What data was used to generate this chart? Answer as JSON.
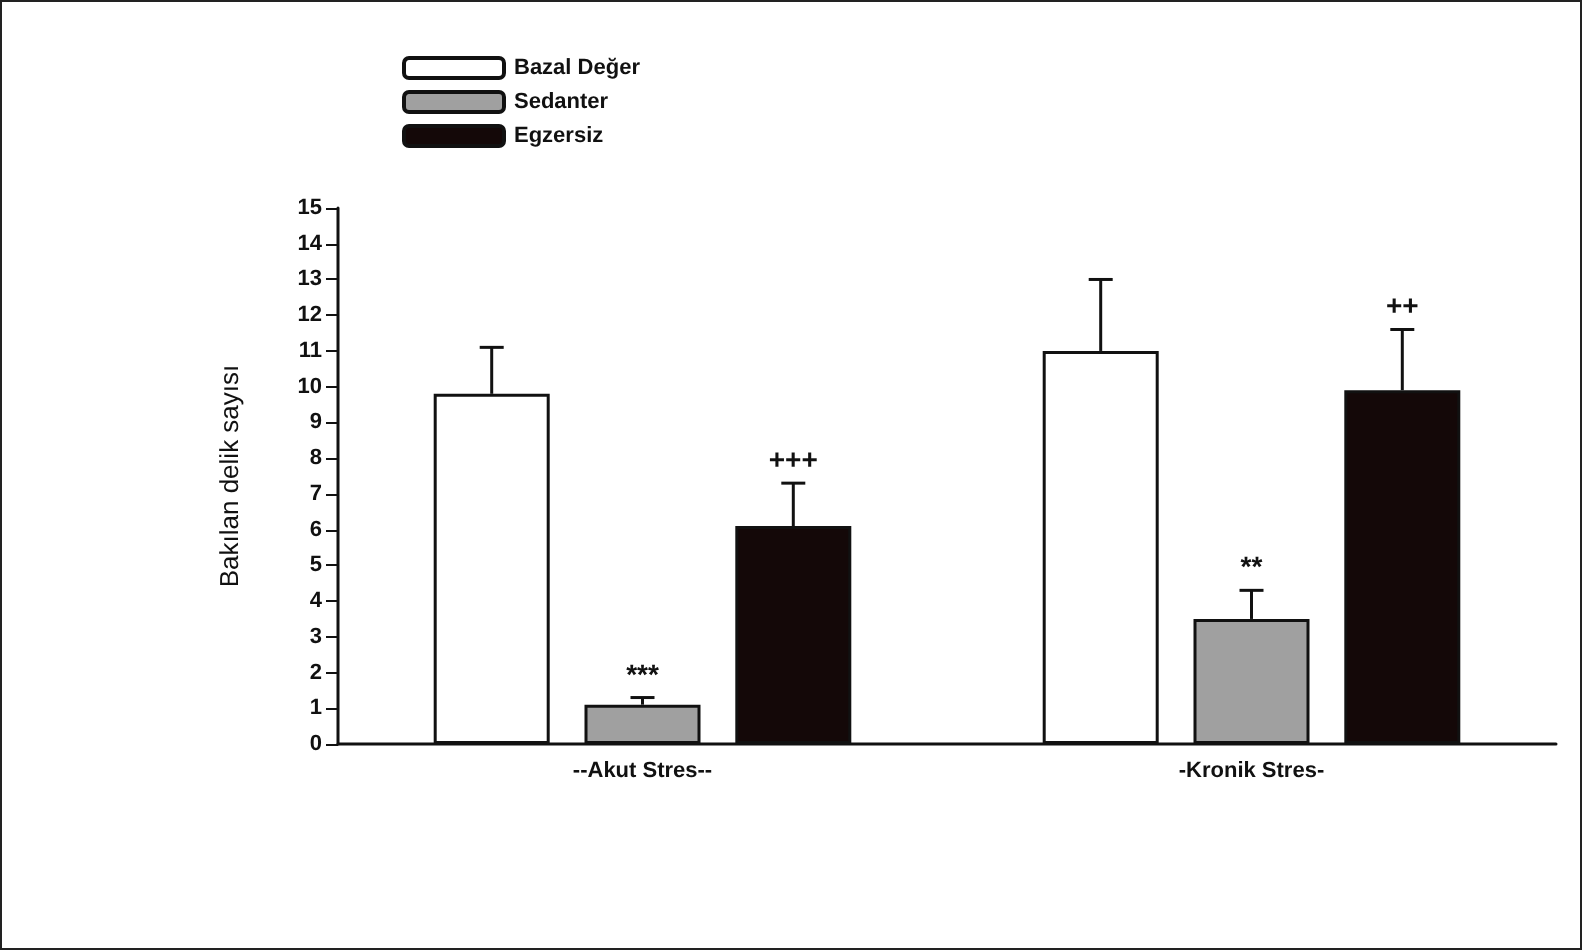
{
  "chart_data": {
    "type": "bar",
    "ylabel": "Bakılan delik sayısı",
    "categories": [
      "--Akut Stres--",
      "-Kronik Stres-"
    ],
    "series": [
      {
        "name": "Bazal Değer",
        "color": "#ffffff",
        "values": [
          9.8,
          11.0
        ],
        "errors": [
          1.3,
          2.0
        ]
      },
      {
        "name": "Sedanter",
        "color": "#a0a0a0",
        "values": [
          1.1,
          3.5
        ],
        "errors": [
          0.2,
          0.8
        ]
      },
      {
        "name": "Egzersiz",
        "color": "#140808",
        "values": [
          6.1,
          9.9
        ],
        "errors": [
          1.2,
          1.7
        ]
      }
    ],
    "ylim": [
      0,
      15
    ],
    "yticks": [
      0,
      1,
      2,
      3,
      4,
      5,
      6,
      7,
      8,
      9,
      10,
      11,
      12,
      13,
      14,
      15
    ],
    "grid": false,
    "legend": "top left",
    "annotations": [
      "***",
      "+++",
      "**",
      "++"
    ]
  }
}
